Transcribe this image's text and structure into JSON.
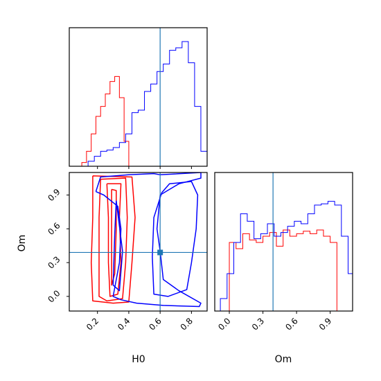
{
  "chart_data": {
    "type": "corner",
    "parameters": [
      "H0",
      "Om"
    ],
    "truth": {
      "H0": 0.6,
      "Om": 0.39
    },
    "colors": {
      "red_chain": "#ff0000",
      "blue_chain": "#0000ff",
      "truth": "#1f77b4"
    },
    "panels": [
      {
        "id": "H0-marginal",
        "type": "histogram",
        "parameter": "H0",
        "xlim": [
          0.02,
          0.9
        ],
        "x_ticks": [
          0.2,
          0.4,
          0.6,
          0.8
        ],
        "tick_labels_shown": false,
        "series": [
          {
            "color": "red",
            "bins": [
              0.1,
              0.13,
              0.16,
              0.19,
              0.22,
              0.25,
              0.28,
              0.31,
              0.34,
              0.37,
              0.4
            ],
            "heights": [
              0.03,
              0.12,
              0.26,
              0.4,
              0.48,
              0.58,
              0.68,
              0.72,
              0.55,
              0.2
            ]
          },
          {
            "color": "blue",
            "bins": [
              0.14,
              0.18,
              0.22,
              0.26,
              0.3,
              0.34,
              0.38,
              0.42,
              0.46,
              0.5,
              0.54,
              0.58,
              0.62,
              0.66,
              0.7,
              0.74,
              0.78,
              0.82,
              0.86,
              0.9
            ],
            "heights": [
              0.04,
              0.08,
              0.12,
              0.13,
              0.15,
              0.19,
              0.26,
              0.43,
              0.45,
              0.6,
              0.66,
              0.76,
              0.82,
              0.93,
              0.95,
              1.0,
              0.83,
              0.48,
              0.12
            ]
          }
        ]
      },
      {
        "id": "H0-Om-contour",
        "type": "contour",
        "xlim": [
          0.02,
          0.9
        ],
        "ylim": [
          -0.13,
          1.1
        ],
        "x_ticks": [
          0.2,
          0.4,
          0.6,
          0.8
        ],
        "y_ticks": [
          0.0,
          0.3,
          0.6,
          0.9
        ],
        "y_tick_labels": [
          "0.0",
          "0.3",
          "0.6",
          "0.9"
        ],
        "xlabel": "H0",
        "ylabel": "Om",
        "contours": [
          {
            "color": "red",
            "points": [
              [
                0.17,
                1.07
              ],
              [
                0.42,
                1.06
              ],
              [
                0.44,
                0.7
              ],
              [
                0.42,
                0.3
              ],
              [
                0.4,
                -0.05
              ],
              [
                0.3,
                -0.06
              ],
              [
                0.17,
                -0.04
              ],
              [
                0.16,
                0.3
              ],
              [
                0.17,
                0.7
              ],
              [
                0.17,
                1.07
              ]
            ]
          },
          {
            "color": "red",
            "points": [
              [
                0.22,
                1.04
              ],
              [
                0.38,
                1.05
              ],
              [
                0.39,
                0.7
              ],
              [
                0.38,
                0.3
              ],
              [
                0.36,
                -0.02
              ],
              [
                0.26,
                -0.04
              ],
              [
                0.21,
                0.0
              ],
              [
                0.21,
                0.3
              ],
              [
                0.21,
                0.7
              ],
              [
                0.22,
                1.04
              ]
            ]
          },
          {
            "color": "red",
            "points": [
              [
                0.26,
                1.0
              ],
              [
                0.35,
                1.0
              ],
              [
                0.34,
                0.7
              ],
              [
                0.35,
                0.3
              ],
              [
                0.33,
                0.02
              ],
              [
                0.28,
                0.0
              ],
              [
                0.27,
                0.3
              ],
              [
                0.27,
                0.7
              ],
              [
                0.26,
                1.0
              ]
            ]
          },
          {
            "color": "red",
            "points": [
              [
                0.29,
                0.95
              ],
              [
                0.32,
                0.94
              ],
              [
                0.32,
                0.6
              ],
              [
                0.31,
                0.2
              ],
              [
                0.29,
                0.1
              ],
              [
                0.29,
                0.5
              ],
              [
                0.29,
                0.95
              ]
            ]
          },
          {
            "color": "blue",
            "points": [
              [
                0.19,
                0.93
              ],
              [
                0.22,
                1.06
              ],
              [
                0.4,
                1.08
              ],
              [
                0.56,
                1.09
              ],
              [
                0.6,
                1.08
              ],
              [
                0.86,
                1.1
              ],
              [
                0.86,
                1.05
              ],
              [
                0.72,
                1.0
              ],
              [
                0.66,
                0.95
              ],
              [
                0.6,
                0.9
              ],
              [
                0.58,
                0.6
              ],
              [
                0.6,
                0.4
              ],
              [
                0.62,
                0.15
              ],
              [
                0.72,
                0.05
              ],
              [
                0.86,
                -0.06
              ],
              [
                0.85,
                -0.09
              ],
              [
                0.62,
                -0.08
              ],
              [
                0.45,
                -0.06
              ],
              [
                0.35,
                -0.03
              ],
              [
                0.3,
                0.0
              ],
              [
                0.34,
                0.3
              ],
              [
                0.35,
                0.6
              ],
              [
                0.33,
                0.8
              ],
              [
                0.24,
                0.9
              ],
              [
                0.19,
                0.93
              ]
            ]
          },
          {
            "color": "blue",
            "points": [
              [
                0.61,
                0.92
              ],
              [
                0.66,
                1.0
              ],
              [
                0.8,
                1.02
              ],
              [
                0.84,
                0.9
              ],
              [
                0.83,
                0.6
              ],
              [
                0.8,
                0.3
              ],
              [
                0.77,
                0.06
              ],
              [
                0.65,
                0.0
              ],
              [
                0.56,
                0.02
              ],
              [
                0.55,
                0.35
              ],
              [
                0.56,
                0.7
              ],
              [
                0.61,
                0.92
              ]
            ]
          },
          {
            "color": "blue",
            "points": [
              [
                0.32,
                0.85
              ],
              [
                0.36,
                0.4
              ],
              [
                0.34,
                0.05
              ],
              [
                0.3,
                0.1
              ],
              [
                0.31,
                0.55
              ],
              [
                0.32,
                0.85
              ]
            ]
          }
        ]
      },
      {
        "id": "Om-marginal",
        "type": "histogram",
        "parameter": "Om",
        "xlim": [
          -0.13,
          1.1
        ],
        "x_ticks": [
          0.0,
          0.3,
          0.6,
          0.9
        ],
        "x_tick_labels": [
          "0.0",
          "0.3",
          "0.6",
          "0.9"
        ],
        "xlabel": "Om",
        "series": [
          {
            "color": "red",
            "bins": [
              0.0,
              0.06,
              0.12,
              0.18,
              0.24,
              0.3,
              0.36,
              0.42,
              0.48,
              0.54,
              0.6,
              0.66,
              0.72,
              0.78,
              0.84,
              0.9,
              0.96,
              1.0
            ],
            "heights": [
              0.55,
              0.5,
              0.62,
              0.57,
              0.55,
              0.6,
              0.63,
              0.52,
              0.65,
              0.6,
              0.62,
              0.64,
              0.62,
              0.65,
              0.6,
              0.55,
              0.0
            ]
          },
          {
            "color": "blue",
            "bins": [
              -0.08,
              -0.02,
              0.04,
              0.1,
              0.16,
              0.22,
              0.28,
              0.34,
              0.4,
              0.46,
              0.52,
              0.58,
              0.64,
              0.7,
              0.76,
              0.82,
              0.88,
              0.94,
              1.0,
              1.06,
              1.1
            ],
            "heights": [
              0.1,
              0.3,
              0.55,
              0.78,
              0.72,
              0.58,
              0.62,
              0.7,
              0.6,
              0.63,
              0.68,
              0.72,
              0.7,
              0.78,
              0.85,
              0.86,
              0.88,
              0.85,
              0.6,
              0.3
            ]
          }
        ]
      }
    ]
  }
}
